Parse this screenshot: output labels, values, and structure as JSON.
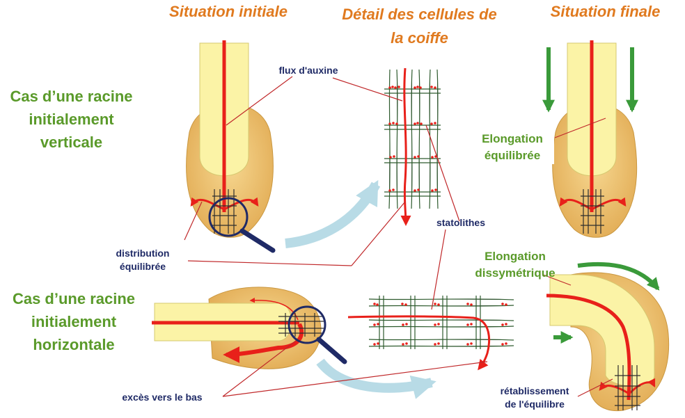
{
  "headers": {
    "initial": "Situation initiale",
    "detail_line1": "Détail des cellules de",
    "detail_line2": "la coiffe",
    "final": "Situation finale"
  },
  "cases": {
    "vertical": [
      "Cas d’une racine",
      "initialement",
      "verticale"
    ],
    "horizontal": [
      "Cas d’une racine",
      "initialement",
      "horizontale"
    ]
  },
  "labels": {
    "auxin_flow": "flux d'auxine",
    "statoliths": "statolithes",
    "balanced_distribution": [
      "distribution",
      "équilibrée"
    ],
    "excess_down": "excès vers le bas",
    "balanced_elongation": [
      "Elongation",
      "équilibrée"
    ],
    "asymmetric_elongation": [
      "Elongation",
      "dissymétrique"
    ],
    "restoration": [
      "rétablissement",
      "de l'équilibre"
    ]
  },
  "colors": {
    "header": "#e07a1f",
    "case_text": "#5a9a2a",
    "label_text": "#1f2a66",
    "auxin": "#e8201a",
    "root_core": "#fbf3a6",
    "root_cap": "#eab866",
    "growth_arrow": "#3a9a3a",
    "transition_arrow": "#b8dbe6",
    "cell_wall": "#2d5a2d"
  }
}
